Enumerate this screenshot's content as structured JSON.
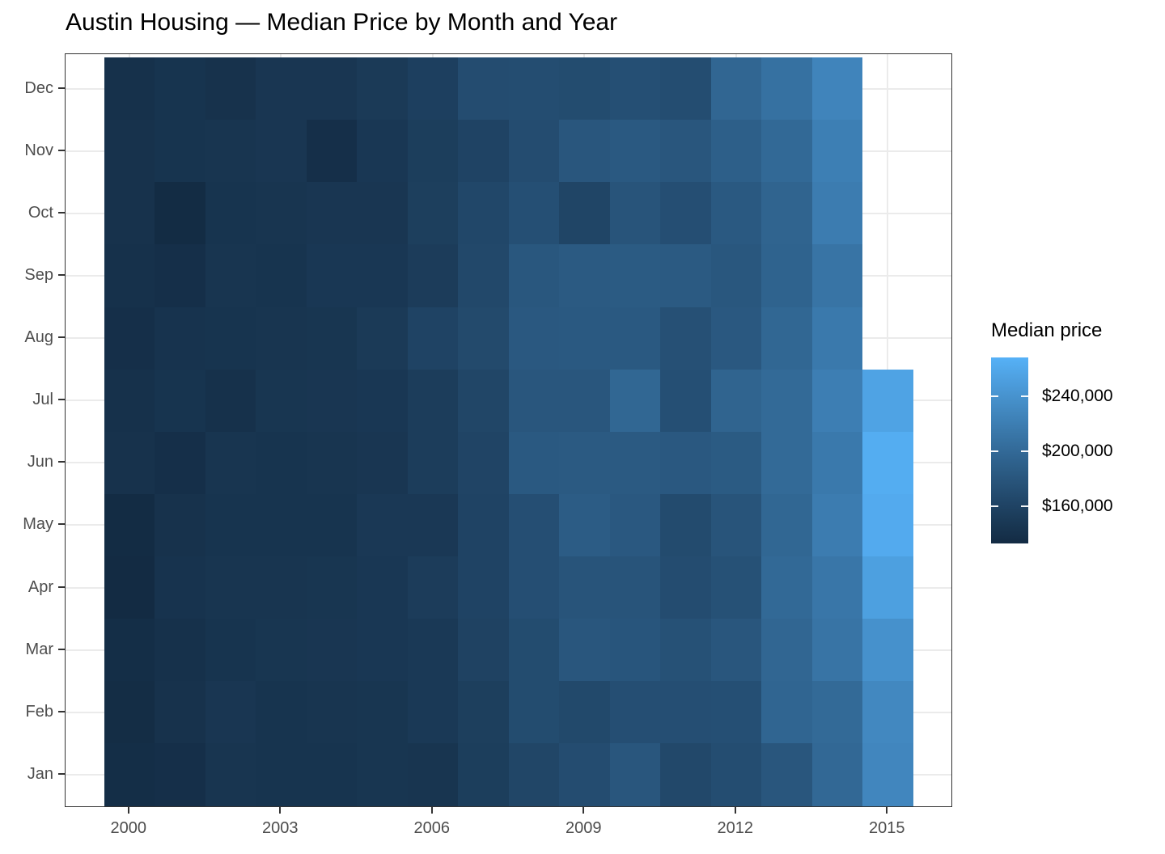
{
  "title": "Austin Housing — Median Price by Month and Year",
  "legend": {
    "title": "Median price",
    "ticks": [
      {
        "label": "$240,000",
        "value": 240000
      },
      {
        "label": "$200,000",
        "value": 200000
      },
      {
        "label": "$160,000",
        "value": 160000
      }
    ]
  },
  "axes": {
    "x_ticks": [
      {
        "label": "2000",
        "value": 2000
      },
      {
        "label": "2003",
        "value": 2003
      },
      {
        "label": "2006",
        "value": 2006
      },
      {
        "label": "2009",
        "value": 2009
      },
      {
        "label": "2012",
        "value": 2012
      },
      {
        "label": "2015",
        "value": 2015
      }
    ],
    "y_labels_top_to_bottom": [
      "Dec",
      "Nov",
      "Oct",
      "Sep",
      "Aug",
      "Jul",
      "Jun",
      "May",
      "Apr",
      "Mar",
      "Feb",
      "Jan"
    ]
  },
  "chart_data": {
    "type": "heatmap",
    "x": [
      2000,
      2001,
      2002,
      2003,
      2004,
      2005,
      2006,
      2007,
      2008,
      2009,
      2010,
      2011,
      2012,
      2013,
      2014,
      2015
    ],
    "y": [
      "Jan",
      "Feb",
      "Mar",
      "Apr",
      "May",
      "Jun",
      "Jul",
      "Aug",
      "Sep",
      "Oct",
      "Nov",
      "Dec"
    ],
    "title": "Austin Housing — Median Price by Month and Year",
    "xlabel": "",
    "ylabel": "",
    "legend_position": "right",
    "grid": "light-gray major gridlines at axis ticks",
    "note": "values are median home prices in USD, estimated from the color scale; 2015 has data Jan–Jul only (Aug–Dec null)",
    "color_scale": {
      "low": "#132B43",
      "high": "#56B1F7",
      "space": "lab",
      "domain": [
        133000,
        268000
      ]
    },
    "series": [
      {
        "name": "Jan",
        "values": [
          136000,
          138000,
          144000,
          143000,
          143000,
          145000,
          144000,
          154000,
          163000,
          170000,
          180000,
          165000,
          171000,
          180000,
          198000,
          228000
        ]
      },
      {
        "name": "Feb",
        "values": [
          135000,
          141000,
          146000,
          143000,
          144000,
          145000,
          149000,
          155000,
          169000,
          166000,
          172000,
          172000,
          173000,
          195000,
          200000,
          230000
        ]
      },
      {
        "name": "Mar",
        "values": [
          136000,
          140000,
          143000,
          145000,
          146000,
          147000,
          149000,
          159000,
          169000,
          180000,
          179000,
          175000,
          180000,
          196000,
          210000,
          238000
        ]
      },
      {
        "name": "Apr",
        "values": [
          133000,
          142000,
          144000,
          144000,
          145000,
          147000,
          152000,
          160000,
          172000,
          178000,
          178000,
          170000,
          175000,
          199000,
          212000,
          252000
        ]
      },
      {
        "name": "May",
        "values": [
          134000,
          141000,
          143000,
          143000,
          143000,
          148000,
          148000,
          160000,
          172000,
          186000,
          182000,
          168000,
          178000,
          197000,
          218000,
          262000
        ]
      },
      {
        "name": "Jun",
        "values": [
          141000,
          138000,
          144000,
          143000,
          144000,
          146000,
          153000,
          161000,
          183000,
          184000,
          184000,
          182000,
          185000,
          200000,
          215000,
          264000
        ]
      },
      {
        "name": "Jul",
        "values": [
          140000,
          143000,
          140000,
          145000,
          146000,
          147000,
          153000,
          163000,
          180000,
          180000,
          197000,
          173000,
          194000,
          200000,
          220000,
          255000
        ]
      },
      {
        "name": "Aug",
        "values": [
          138000,
          142000,
          143000,
          144000,
          145000,
          150000,
          160000,
          167000,
          182000,
          183000,
          183000,
          174000,
          182000,
          197000,
          215000,
          null
        ]
      },
      {
        "name": "Sep",
        "values": [
          140000,
          138000,
          144000,
          143000,
          147000,
          147000,
          152000,
          165000,
          181000,
          184000,
          185000,
          184000,
          181000,
          193000,
          210000,
          null
        ]
      },
      {
        "name": "Oct",
        "values": [
          141000,
          134000,
          143000,
          144000,
          146000,
          146000,
          155000,
          164000,
          173000,
          162000,
          178000,
          172000,
          183000,
          194000,
          218000,
          null
        ]
      },
      {
        "name": "Nov",
        "values": [
          141000,
          143000,
          144000,
          146000,
          138000,
          147000,
          154000,
          160000,
          170000,
          180000,
          183000,
          180000,
          189000,
          199000,
          221000,
          null
        ]
      },
      {
        "name": "Dec",
        "values": [
          140000,
          143000,
          141000,
          146000,
          146000,
          150000,
          156000,
          170000,
          171000,
          169000,
          173000,
          171000,
          196000,
          207000,
          226000,
          null
        ]
      }
    ]
  }
}
